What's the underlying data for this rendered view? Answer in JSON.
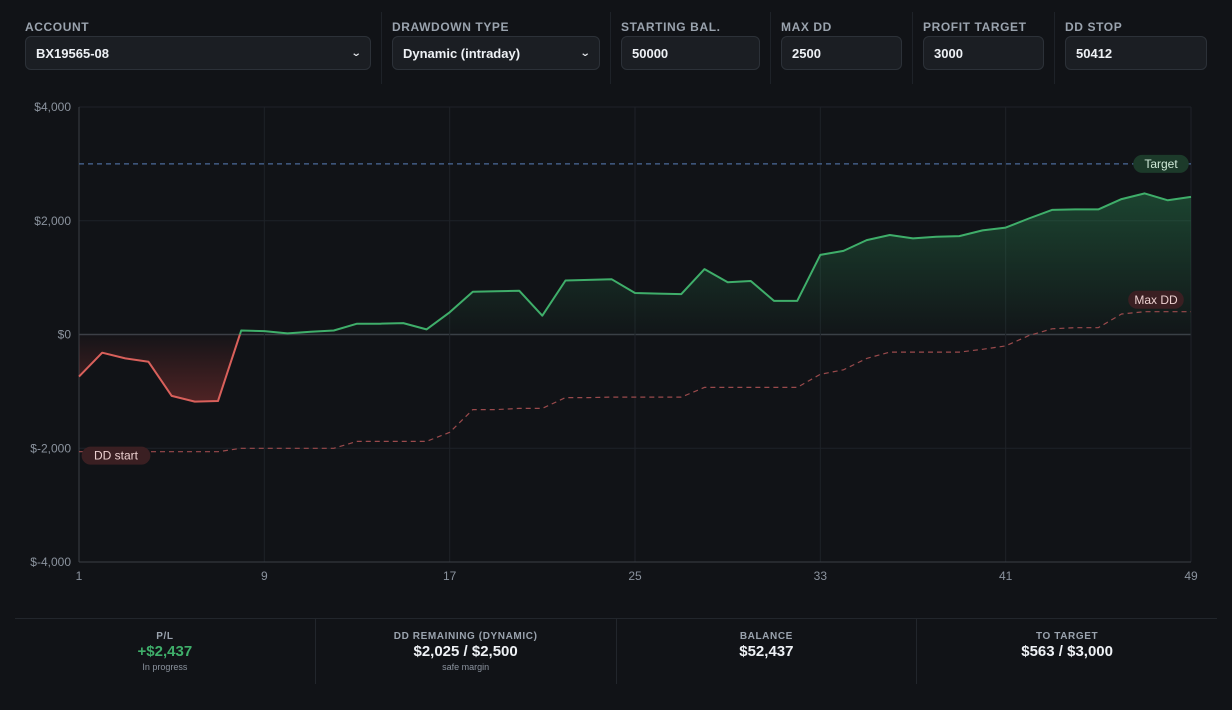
{
  "controls": {
    "account": {
      "label": "ACCOUNT",
      "value": "BX19565-08"
    },
    "drawdown_type": {
      "label": "DRAWDOWN TYPE",
      "value": "Dynamic (intraday)"
    },
    "starting_balance": {
      "label": "STARTING BAL.",
      "value": "50000"
    },
    "max_dd": {
      "label": "MAX DD",
      "value": "2500"
    },
    "profit_target": {
      "label": "PROFIT TARGET",
      "value": "3000"
    },
    "dd_stop": {
      "label": "DD STOP",
      "value": "50412"
    }
  },
  "chart_data": {
    "type": "line",
    "xlabel": "",
    "ylabel": "",
    "x_ticks": [
      "1",
      "9",
      "17",
      "25",
      "33",
      "41",
      "49"
    ],
    "y_ticks": [
      "$4,000",
      "$2,000",
      "$0",
      "$-2,000",
      "$-4,000"
    ],
    "xlim": [
      1,
      49
    ],
    "ylim": [
      -4000,
      4000
    ],
    "grid": true,
    "annotations": {
      "target": "Target",
      "max_dd": "Max DD",
      "dd_start": "DD start"
    },
    "target_value": 3000,
    "colors": {
      "gain": "#3fae6a",
      "loss": "#d9605b",
      "target": "#4a6a9a",
      "dd": "#9a4a4c"
    },
    "series": [
      {
        "role": "pnl",
        "x": [
          1,
          2,
          3,
          4,
          5,
          6,
          7,
          8,
          9,
          10,
          11,
          12,
          13,
          14,
          15,
          16,
          17,
          18,
          19,
          20,
          21,
          22,
          23,
          24,
          25,
          26,
          27,
          28,
          29,
          30,
          31,
          32,
          33,
          34,
          35,
          36,
          37,
          38,
          39,
          40,
          41,
          42,
          43,
          44,
          45,
          46,
          47,
          48,
          49
        ],
        "values": [
          -740,
          -320,
          -420,
          -480,
          -1080,
          -1180,
          -1170,
          70,
          60,
          20,
          50,
          70,
          190,
          190,
          200,
          90,
          390,
          750,
          760,
          770,
          330,
          950,
          960,
          970,
          730,
          720,
          710,
          1150,
          920,
          940,
          590,
          590,
          1400,
          1470,
          1660,
          1750,
          1690,
          1720,
          1730,
          1830,
          1880,
          2040,
          2190,
          2200,
          2200,
          2380,
          2480,
          2360,
          2420
        ]
      },
      {
        "role": "dd_stop",
        "x": [
          1,
          2,
          3,
          4,
          5,
          6,
          7,
          8,
          9,
          10,
          11,
          12,
          13,
          14,
          15,
          16,
          17,
          18,
          19,
          20,
          21,
          22,
          23,
          24,
          25,
          26,
          27,
          28,
          29,
          30,
          31,
          32,
          33,
          34,
          35,
          36,
          37,
          38,
          39,
          40,
          41,
          42,
          43,
          44,
          45,
          46,
          47,
          48,
          49
        ],
        "values": [
          -2060,
          -2060,
          -2060,
          -2060,
          -2060,
          -2060,
          -2060,
          -2000,
          -2000,
          -2000,
          -2000,
          -2000,
          -1880,
          -1880,
          -1880,
          -1880,
          -1720,
          -1320,
          -1320,
          -1300,
          -1300,
          -1110,
          -1110,
          -1100,
          -1100,
          -1100,
          -1100,
          -930,
          -930,
          -930,
          -930,
          -930,
          -700,
          -620,
          -420,
          -310,
          -310,
          -310,
          -310,
          -260,
          -200,
          -20,
          100,
          120,
          120,
          360,
          400,
          400,
          400
        ]
      }
    ]
  },
  "stats": [
    {
      "label": "P/L",
      "value": "+$2,437",
      "sub": "In progress"
    },
    {
      "label": "DD REMAINING (DYNAMIC)",
      "value": "$2,025 / $2,500",
      "sub": "safe margin"
    },
    {
      "label": "BALANCE",
      "value": "$52,437",
      "sub": ""
    },
    {
      "label": "TO TARGET",
      "value": "$563 / $3,000",
      "sub": ""
    }
  ]
}
